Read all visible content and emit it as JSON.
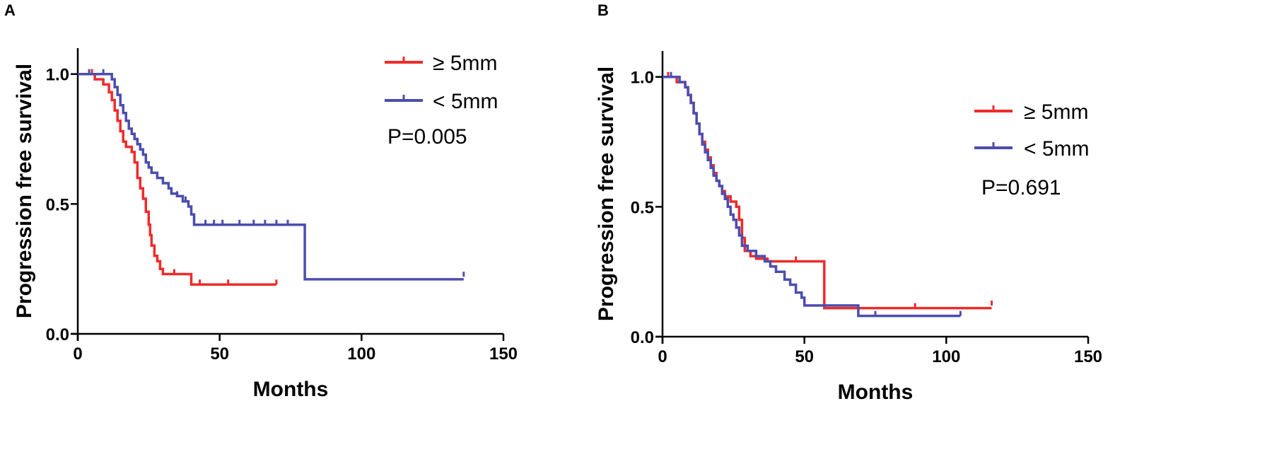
{
  "colors": {
    "red": "#ee2b2b",
    "blue": "#4b4db0",
    "axis": "#000000"
  },
  "chart_data": [
    {
      "panel": "A",
      "type": "line",
      "subtype": "kaplan-meier",
      "title": "",
      "xlabel": "Months",
      "ylabel": "Progression free survival",
      "xlim": [
        0,
        150
      ],
      "ylim": [
        0,
        1.1
      ],
      "xticks": [
        "0",
        "50",
        "100",
        "150"
      ],
      "yticks": [
        "0.0",
        "0.5",
        "1.0"
      ],
      "legend_position": "top-right",
      "pvalue": "P=0.005",
      "series": [
        {
          "name": "≥ 5mm",
          "color": "#ee2b2b",
          "steps": [
            [
              0,
              1.0
            ],
            [
              6,
              0.98
            ],
            [
              9,
              0.96
            ],
            [
              11,
              0.93
            ],
            [
              12,
              0.9
            ],
            [
              13,
              0.86
            ],
            [
              14,
              0.82
            ],
            [
              15,
              0.78
            ],
            [
              16,
              0.74
            ],
            [
              17,
              0.72
            ],
            [
              19,
              0.7
            ],
            [
              20,
              0.66
            ],
            [
              21,
              0.6
            ],
            [
              22,
              0.56
            ],
            [
              23,
              0.52
            ],
            [
              24,
              0.47
            ],
            [
              25,
              0.42
            ],
            [
              25.5,
              0.38
            ],
            [
              26,
              0.34
            ],
            [
              27,
              0.3
            ],
            [
              28,
              0.28
            ],
            [
              29,
              0.25
            ],
            [
              30,
              0.23
            ],
            [
              40,
              0.19
            ],
            [
              70,
              0.19
            ]
          ],
          "censored": [
            [
              5,
              1.0
            ],
            [
              34,
              0.23
            ],
            [
              43,
              0.19
            ],
            [
              53,
              0.19
            ],
            [
              70,
              0.19
            ]
          ]
        },
        {
          "name": "< 5mm",
          "color": "#4b4db0",
          "steps": [
            [
              0,
              1.0
            ],
            [
              12,
              0.98
            ],
            [
              13,
              0.95
            ],
            [
              14,
              0.92
            ],
            [
              15,
              0.88
            ],
            [
              16,
              0.85
            ],
            [
              17,
              0.82
            ],
            [
              18,
              0.79
            ],
            [
              19,
              0.77
            ],
            [
              20,
              0.75
            ],
            [
              21,
              0.73
            ],
            [
              22,
              0.71
            ],
            [
              23,
              0.69
            ],
            [
              24,
              0.66
            ],
            [
              25,
              0.64
            ],
            [
              26,
              0.62
            ],
            [
              28,
              0.6
            ],
            [
              30,
              0.58
            ],
            [
              32,
              0.56
            ],
            [
              33,
              0.54
            ],
            [
              35,
              0.53
            ],
            [
              37,
              0.51
            ],
            [
              39,
              0.49
            ],
            [
              40,
              0.46
            ],
            [
              41,
              0.42
            ],
            [
              80,
              0.21
            ],
            [
              136,
              0.21
            ]
          ],
          "censored": [
            [
              4,
              1.0
            ],
            [
              9,
              1.0
            ],
            [
              35,
              0.53
            ],
            [
              38,
              0.51
            ],
            [
              45,
              0.42
            ],
            [
              48,
              0.42
            ],
            [
              51,
              0.42
            ],
            [
              57,
              0.42
            ],
            [
              62,
              0.42
            ],
            [
              66,
              0.42
            ],
            [
              70,
              0.42
            ],
            [
              74,
              0.42
            ],
            [
              136,
              0.22
            ]
          ]
        }
      ]
    },
    {
      "panel": "B",
      "type": "line",
      "subtype": "kaplan-meier",
      "title": "",
      "xlabel": "Months",
      "ylabel": "Progression free survival",
      "xlim": [
        0,
        150
      ],
      "ylim": [
        0,
        1.1
      ],
      "xticks": [
        "0",
        "50",
        "100",
        "150"
      ],
      "yticks": [
        "0.0",
        "0.5",
        "1.0"
      ],
      "legend_position": "right",
      "pvalue": "P=0.691",
      "series": [
        {
          "name": "≥ 5mm",
          "color": "#ee2b2b",
          "steps": [
            [
              0,
              1.0
            ],
            [
              5,
              0.98
            ],
            [
              8,
              0.96
            ],
            [
              9,
              0.93
            ],
            [
              10,
              0.9
            ],
            [
              11,
              0.86
            ],
            [
              12,
              0.82
            ],
            [
              13,
              0.78
            ],
            [
              14,
              0.75
            ],
            [
              15,
              0.72
            ],
            [
              16,
              0.69
            ],
            [
              17,
              0.66
            ],
            [
              18,
              0.63
            ],
            [
              19,
              0.6
            ],
            [
              20,
              0.58
            ],
            [
              21,
              0.56
            ],
            [
              22,
              0.54
            ],
            [
              24,
              0.52
            ],
            [
              26,
              0.5
            ],
            [
              27,
              0.45
            ],
            [
              28,
              0.38
            ],
            [
              29,
              0.33
            ],
            [
              31,
              0.31
            ],
            [
              33,
              0.3
            ],
            [
              37,
              0.29
            ],
            [
              56,
              0.29
            ],
            [
              57,
              0.11
            ],
            [
              116,
              0.11
            ]
          ],
          "censored": [
            [
              2,
              1.0
            ],
            [
              26,
              0.5
            ],
            [
              47,
              0.29
            ],
            [
              89,
              0.11
            ],
            [
              116,
              0.12
            ]
          ]
        },
        {
          "name": "< 5mm",
          "color": "#4b4db0",
          "steps": [
            [
              0,
              1.0
            ],
            [
              6,
              0.98
            ],
            [
              8,
              0.96
            ],
            [
              9,
              0.93
            ],
            [
              10,
              0.9
            ],
            [
              11,
              0.86
            ],
            [
              12,
              0.82
            ],
            [
              13,
              0.78
            ],
            [
              14,
              0.74
            ],
            [
              15,
              0.71
            ],
            [
              16,
              0.68
            ],
            [
              17,
              0.65
            ],
            [
              18,
              0.62
            ],
            [
              19,
              0.6
            ],
            [
              20,
              0.58
            ],
            [
              21,
              0.55
            ],
            [
              22,
              0.53
            ],
            [
              23,
              0.5
            ],
            [
              24,
              0.47
            ],
            [
              25,
              0.45
            ],
            [
              26,
              0.42
            ],
            [
              27,
              0.39
            ],
            [
              28,
              0.35
            ],
            [
              30,
              0.33
            ],
            [
              33,
              0.31
            ],
            [
              36,
              0.29
            ],
            [
              38,
              0.27
            ],
            [
              40,
              0.25
            ],
            [
              43,
              0.22
            ],
            [
              45,
              0.2
            ],
            [
              47,
              0.17
            ],
            [
              49,
              0.15
            ],
            [
              50,
              0.12
            ],
            [
              69,
              0.08
            ],
            [
              105,
              0.08
            ]
          ],
          "censored": [
            [
              3,
              1.0
            ],
            [
              33,
              0.31
            ],
            [
              75,
              0.08
            ],
            [
              105,
              0.08
            ]
          ]
        }
      ]
    }
  ]
}
